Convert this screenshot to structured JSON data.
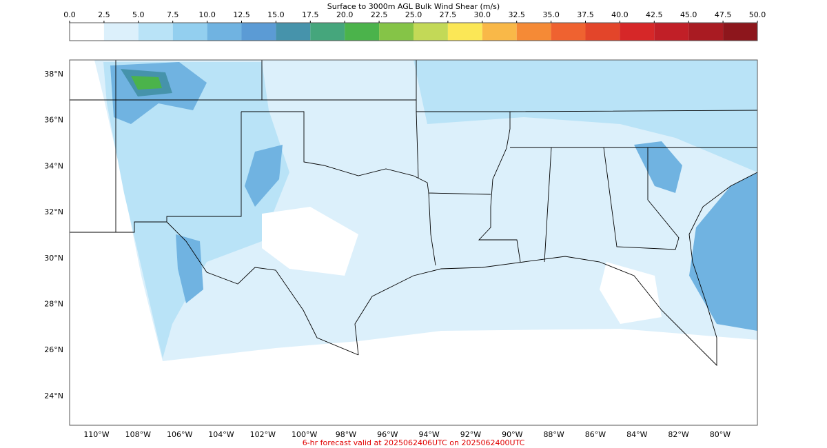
{
  "title": "Surface to 3000m AGL Bulk Wind Shear (m/s)",
  "colorbar": {
    "colors": [
      "#ffffff",
      "#dcf0fb",
      "#b9e3f7",
      "#93cfef",
      "#70b3e1",
      "#5b9bd5",
      "#4693ab",
      "#45a67c",
      "#4bb34b",
      "#85c447",
      "#c3d957",
      "#fbe756",
      "#f9b848",
      "#f58a36",
      "#ef6230",
      "#e3452a",
      "#d62728",
      "#c11f27",
      "#a91b22",
      "#8d161c"
    ],
    "ticks": [
      {
        "value": 0,
        "label": "0.0"
      },
      2.5,
      {
        "value": 5,
        "label": "5.0"
      },
      7.5,
      {
        "value": 10,
        "label": "10.0"
      },
      12.5,
      {
        "value": 15,
        "label": "15.0"
      },
      17.5,
      {
        "value": 20,
        "label": "20.0"
      },
      22.5,
      {
        "value": 25,
        "label": "25.0"
      },
      27.5,
      {
        "value": 30,
        "label": "30.0"
      },
      32.5,
      {
        "value": 35,
        "label": "35.0"
      },
      37.5,
      {
        "value": 40,
        "label": "40.0"
      },
      42.5,
      {
        "value": 45,
        "label": "45.0"
      },
      47.5,
      {
        "value": 50,
        "label": "50.0"
      }
    ]
  },
  "lat_ticks": [
    {
      "value": 38,
      "label": "38°N"
    },
    {
      "value": 36,
      "label": "36°N"
    },
    {
      "value": 34,
      "label": "34°N"
    },
    {
      "value": 32,
      "label": "32°N"
    },
    {
      "value": 30,
      "label": "30°N"
    },
    {
      "value": 28,
      "label": "28°N"
    },
    {
      "value": 26,
      "label": "26°N"
    },
    {
      "value": 24,
      "label": "24°N"
    }
  ],
  "lon_ticks": [
    {
      "value": -110,
      "label": "110°W"
    },
    {
      "value": -108,
      "label": "108°W"
    },
    {
      "value": -106,
      "label": "106°W"
    },
    {
      "value": -104,
      "label": "104°W"
    },
    {
      "value": -102,
      "label": "102°W"
    },
    {
      "value": -100,
      "label": "100°W"
    },
    {
      "value": -98,
      "label": "98°W"
    },
    {
      "value": -96,
      "label": "96°W"
    },
    {
      "value": -94,
      "label": "94°W"
    },
    {
      "value": -92,
      "label": "92°W"
    },
    {
      "value": -90,
      "label": "90°W"
    },
    {
      "value": -88,
      "label": "88°W"
    },
    {
      "value": -86,
      "label": "86°W"
    },
    {
      "value": -84,
      "label": "84°W"
    },
    {
      "value": -82,
      "label": "82°W"
    },
    {
      "value": -80,
      "label": "80°W"
    }
  ],
  "footer": "6-hr forecast valid at 2025062406UTC on 2025062400UTC"
}
